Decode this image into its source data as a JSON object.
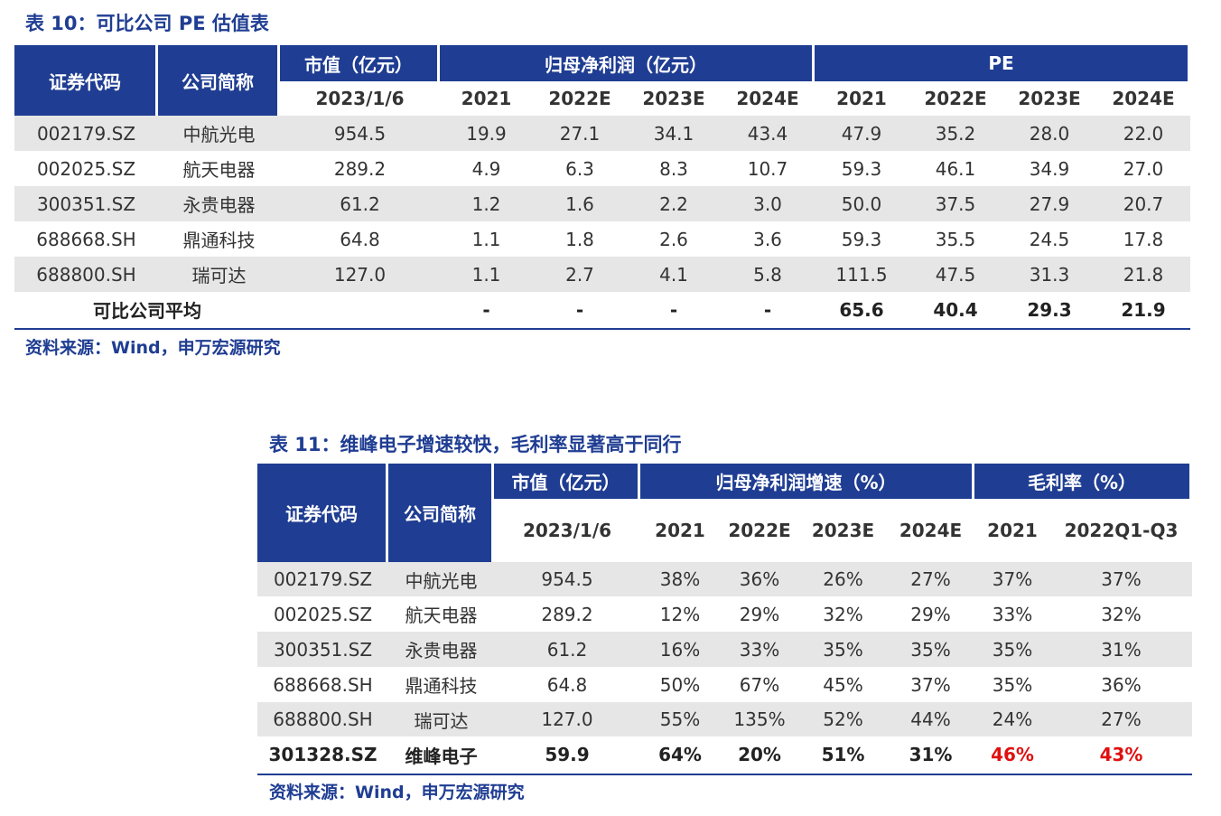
{
  "table1": {
    "title": "表 10：可比公司 PE 估值表",
    "header": {
      "code": "证券代码",
      "name": "公司简称",
      "groups": [
        "市值（亿元）",
        "归母净利润（亿元）",
        "PE"
      ],
      "subheaders": [
        "2023/1/6",
        "2021",
        "2022E",
        "2023E",
        "2024E",
        "2021",
        "2022E",
        "2023E",
        "2024E"
      ]
    },
    "rows": [
      [
        "002179.SZ",
        "中航光电",
        "954.5",
        "19.9",
        "27.1",
        "34.1",
        "43.4",
        "47.9",
        "35.2",
        "28.0",
        "22.0"
      ],
      [
        "002025.SZ",
        "航天电器",
        "289.2",
        "4.9",
        "6.3",
        "8.3",
        "10.7",
        "59.3",
        "46.1",
        "34.9",
        "27.0"
      ],
      [
        "300351.SZ",
        "永贵电器",
        "61.2",
        "1.2",
        "1.6",
        "2.2",
        "3.0",
        "50.0",
        "37.5",
        "27.9",
        "20.7"
      ],
      [
        "688668.SH",
        "鼎通科技",
        "64.8",
        "1.1",
        "1.8",
        "2.6",
        "3.6",
        "59.3",
        "35.5",
        "24.5",
        "17.8"
      ],
      [
        "688800.SH",
        "瑞可达",
        "127.0",
        "1.1",
        "2.7",
        "4.1",
        "5.8",
        "111.5",
        "47.5",
        "31.3",
        "21.8"
      ]
    ],
    "average": {
      "label": "可比公司平均",
      "values": [
        "-",
        "-",
        "-",
        "-",
        "65.6",
        "40.4",
        "29.3",
        "21.9"
      ]
    },
    "source": "资料来源：Wind，申万宏源研究"
  },
  "table2": {
    "title": "表 11：维峰电子增速较快，毛利率显著高于同行",
    "header": {
      "code": "证券代码",
      "name": "公司简称",
      "groups": [
        "市值（亿元）",
        "归母净利润增速（%）",
        "毛利率（%）"
      ],
      "subheaders": [
        "2023/1/6",
        "2021",
        "2022E",
        "2023E",
        "2024E",
        "2021",
        "2022Q1-Q3"
      ]
    },
    "rows": [
      [
        "002179.SZ",
        "中航光电",
        "954.5",
        "38%",
        "36%",
        "26%",
        "27%",
        "37%",
        "37%"
      ],
      [
        "002025.SZ",
        "航天电器",
        "289.2",
        "12%",
        "29%",
        "32%",
        "29%",
        "33%",
        "32%"
      ],
      [
        "300351.SZ",
        "永贵电器",
        "61.2",
        "16%",
        "33%",
        "35%",
        "35%",
        "35%",
        "31%"
      ],
      [
        "688668.SH",
        "鼎通科技",
        "64.8",
        "50%",
        "67%",
        "45%",
        "37%",
        "35%",
        "36%"
      ],
      [
        "688800.SH",
        "瑞可达",
        "127.0",
        "55%",
        "135%",
        "52%",
        "44%",
        "24%",
        "27%"
      ]
    ],
    "target": [
      "301328.SZ",
      "维峰电子",
      "59.9",
      "64%",
      "20%",
      "51%",
      "31%",
      "46%",
      "43%"
    ],
    "source": "资料来源：Wind，申万宏源研究"
  }
}
